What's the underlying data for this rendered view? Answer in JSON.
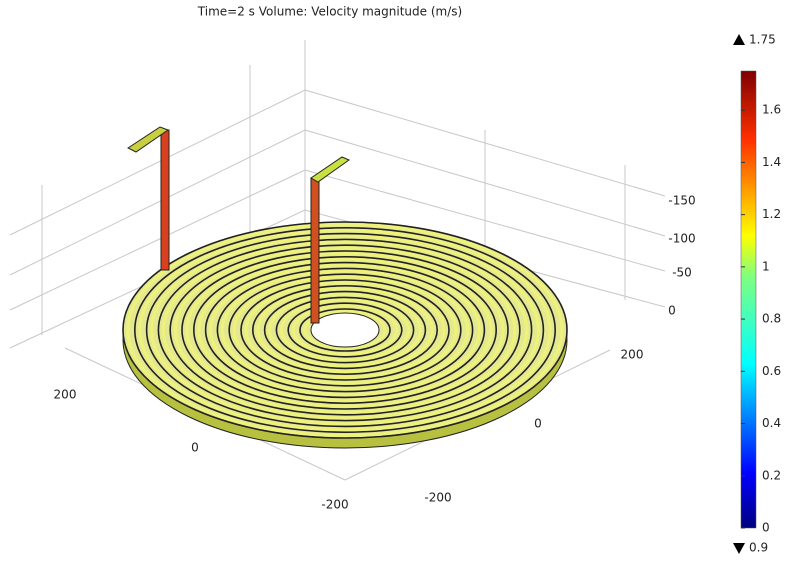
{
  "title": "Time=2 s   Volume: Velocity magnitude (m/s)",
  "colorbar": {
    "lim": [
      0,
      1.75
    ],
    "ticks": [
      0,
      0.2,
      0.4,
      0.6,
      0.8,
      1,
      1.2,
      1.4,
      1.6
    ],
    "max": 1.75,
    "min": 0.9
  },
  "axes": {
    "x": {
      "ticks": [
        200,
        0,
        -200
      ]
    },
    "y": {
      "ticks": [
        -200,
        0,
        200
      ]
    },
    "z": {
      "ticks": [
        -150,
        -100,
        -50,
        0
      ]
    }
  }
}
